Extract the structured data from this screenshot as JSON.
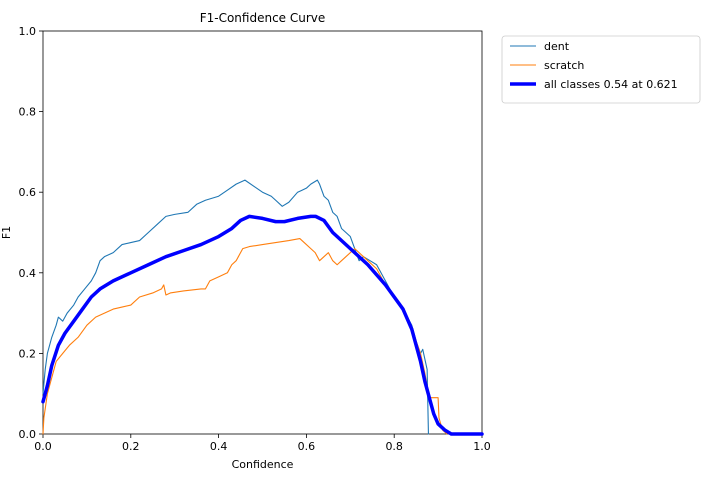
{
  "chart_data": {
    "type": "line",
    "title": "F1-Confidence Curve",
    "xlabel": "Confidence",
    "ylabel": "F1",
    "xlim": [
      0.0,
      1.0
    ],
    "ylim": [
      0.0,
      1.0
    ],
    "xticks": [
      "0.0",
      "0.2",
      "0.4",
      "0.6",
      "0.8",
      "1.0"
    ],
    "yticks": [
      "0.0",
      "0.2",
      "0.4",
      "0.6",
      "0.8",
      "1.0"
    ],
    "grid": false,
    "legend_position": "outside-top-right",
    "series": [
      {
        "name": "dent",
        "color": "#1f77b4",
        "line_width": "thin",
        "points": [
          [
            0.0,
            0.1
          ],
          [
            0.005,
            0.16
          ],
          [
            0.01,
            0.2
          ],
          [
            0.02,
            0.24
          ],
          [
            0.03,
            0.27
          ],
          [
            0.035,
            0.29
          ],
          [
            0.045,
            0.28
          ],
          [
            0.055,
            0.3
          ],
          [
            0.07,
            0.32
          ],
          [
            0.08,
            0.34
          ],
          [
            0.095,
            0.36
          ],
          [
            0.11,
            0.38
          ],
          [
            0.12,
            0.4
          ],
          [
            0.13,
            0.43
          ],
          [
            0.14,
            0.44
          ],
          [
            0.16,
            0.45
          ],
          [
            0.18,
            0.47
          ],
          [
            0.2,
            0.475
          ],
          [
            0.22,
            0.48
          ],
          [
            0.24,
            0.5
          ],
          [
            0.26,
            0.52
          ],
          [
            0.28,
            0.54
          ],
          [
            0.3,
            0.545
          ],
          [
            0.33,
            0.55
          ],
          [
            0.35,
            0.57
          ],
          [
            0.37,
            0.58
          ],
          [
            0.4,
            0.59
          ],
          [
            0.42,
            0.605
          ],
          [
            0.44,
            0.62
          ],
          [
            0.46,
            0.63
          ],
          [
            0.48,
            0.615
          ],
          [
            0.5,
            0.6
          ],
          [
            0.52,
            0.59
          ],
          [
            0.53,
            0.58
          ],
          [
            0.545,
            0.565
          ],
          [
            0.56,
            0.575
          ],
          [
            0.58,
            0.6
          ],
          [
            0.59,
            0.605
          ],
          [
            0.6,
            0.61
          ],
          [
            0.61,
            0.62
          ],
          [
            0.625,
            0.63
          ],
          [
            0.63,
            0.62
          ],
          [
            0.64,
            0.59
          ],
          [
            0.65,
            0.58
          ],
          [
            0.66,
            0.55
          ],
          [
            0.67,
            0.54
          ],
          [
            0.68,
            0.51
          ],
          [
            0.7,
            0.49
          ],
          [
            0.71,
            0.46
          ],
          [
            0.72,
            0.43
          ],
          [
            0.73,
            0.44
          ],
          [
            0.745,
            0.43
          ],
          [
            0.76,
            0.42
          ],
          [
            0.78,
            0.38
          ],
          [
            0.8,
            0.34
          ],
          [
            0.82,
            0.31
          ],
          [
            0.84,
            0.27
          ],
          [
            0.85,
            0.23
          ],
          [
            0.86,
            0.2
          ],
          [
            0.865,
            0.21
          ],
          [
            0.875,
            0.16
          ],
          [
            0.878,
            0.0
          ]
        ]
      },
      {
        "name": "scratch",
        "color": "#ff7f0e",
        "line_width": "thin",
        "points": [
          [
            0.0,
            0.0
          ],
          [
            0.002,
            0.04
          ],
          [
            0.01,
            0.1
          ],
          [
            0.02,
            0.14
          ],
          [
            0.03,
            0.18
          ],
          [
            0.045,
            0.2
          ],
          [
            0.06,
            0.22
          ],
          [
            0.08,
            0.24
          ],
          [
            0.1,
            0.27
          ],
          [
            0.12,
            0.29
          ],
          [
            0.14,
            0.3
          ],
          [
            0.16,
            0.31
          ],
          [
            0.18,
            0.315
          ],
          [
            0.2,
            0.32
          ],
          [
            0.22,
            0.34
          ],
          [
            0.25,
            0.35
          ],
          [
            0.27,
            0.36
          ],
          [
            0.275,
            0.37
          ],
          [
            0.28,
            0.345
          ],
          [
            0.29,
            0.35
          ],
          [
            0.32,
            0.355
          ],
          [
            0.36,
            0.36
          ],
          [
            0.37,
            0.36
          ],
          [
            0.38,
            0.38
          ],
          [
            0.4,
            0.39
          ],
          [
            0.42,
            0.4
          ],
          [
            0.43,
            0.42
          ],
          [
            0.44,
            0.43
          ],
          [
            0.445,
            0.44
          ],
          [
            0.455,
            0.46
          ],
          [
            0.47,
            0.465
          ],
          [
            0.5,
            0.47
          ],
          [
            0.53,
            0.475
          ],
          [
            0.56,
            0.48
          ],
          [
            0.585,
            0.485
          ],
          [
            0.595,
            0.475
          ],
          [
            0.61,
            0.46
          ],
          [
            0.62,
            0.45
          ],
          [
            0.625,
            0.44
          ],
          [
            0.63,
            0.43
          ],
          [
            0.64,
            0.44
          ],
          [
            0.65,
            0.45
          ],
          [
            0.66,
            0.43
          ],
          [
            0.67,
            0.42
          ],
          [
            0.68,
            0.43
          ],
          [
            0.69,
            0.44
          ],
          [
            0.71,
            0.46
          ],
          [
            0.72,
            0.45
          ],
          [
            0.73,
            0.44
          ],
          [
            0.76,
            0.41
          ],
          [
            0.78,
            0.37
          ],
          [
            0.8,
            0.34
          ],
          [
            0.82,
            0.31
          ],
          [
            0.84,
            0.26
          ],
          [
            0.86,
            0.2
          ],
          [
            0.87,
            0.15
          ],
          [
            0.88,
            0.09
          ],
          [
            0.9,
            0.09
          ],
          [
            0.902,
            0.04
          ],
          [
            0.91,
            0.01
          ],
          [
            0.92,
            0.0
          ]
        ]
      },
      {
        "name": "all classes 0.54 at 0.621",
        "color": "#0000ff",
        "line_width": "thick",
        "points": [
          [
            0.0,
            0.08
          ],
          [
            0.01,
            0.12
          ],
          [
            0.02,
            0.17
          ],
          [
            0.035,
            0.22
          ],
          [
            0.05,
            0.25
          ],
          [
            0.07,
            0.28
          ],
          [
            0.09,
            0.31
          ],
          [
            0.11,
            0.34
          ],
          [
            0.13,
            0.36
          ],
          [
            0.16,
            0.38
          ],
          [
            0.2,
            0.4
          ],
          [
            0.24,
            0.42
          ],
          [
            0.28,
            0.44
          ],
          [
            0.32,
            0.455
          ],
          [
            0.36,
            0.47
          ],
          [
            0.4,
            0.49
          ],
          [
            0.43,
            0.51
          ],
          [
            0.45,
            0.53
          ],
          [
            0.47,
            0.54
          ],
          [
            0.5,
            0.535
          ],
          [
            0.53,
            0.527
          ],
          [
            0.55,
            0.527
          ],
          [
            0.58,
            0.535
          ],
          [
            0.61,
            0.54
          ],
          [
            0.621,
            0.54
          ],
          [
            0.64,
            0.53
          ],
          [
            0.66,
            0.5
          ],
          [
            0.7,
            0.46
          ],
          [
            0.74,
            0.42
          ],
          [
            0.78,
            0.37
          ],
          [
            0.82,
            0.31
          ],
          [
            0.84,
            0.26
          ],
          [
            0.86,
            0.18
          ],
          [
            0.87,
            0.13
          ],
          [
            0.88,
            0.09
          ],
          [
            0.89,
            0.05
          ],
          [
            0.9,
            0.025
          ],
          [
            0.915,
            0.01
          ],
          [
            0.93,
            0.0
          ],
          [
            1.0,
            0.0
          ]
        ]
      }
    ]
  }
}
